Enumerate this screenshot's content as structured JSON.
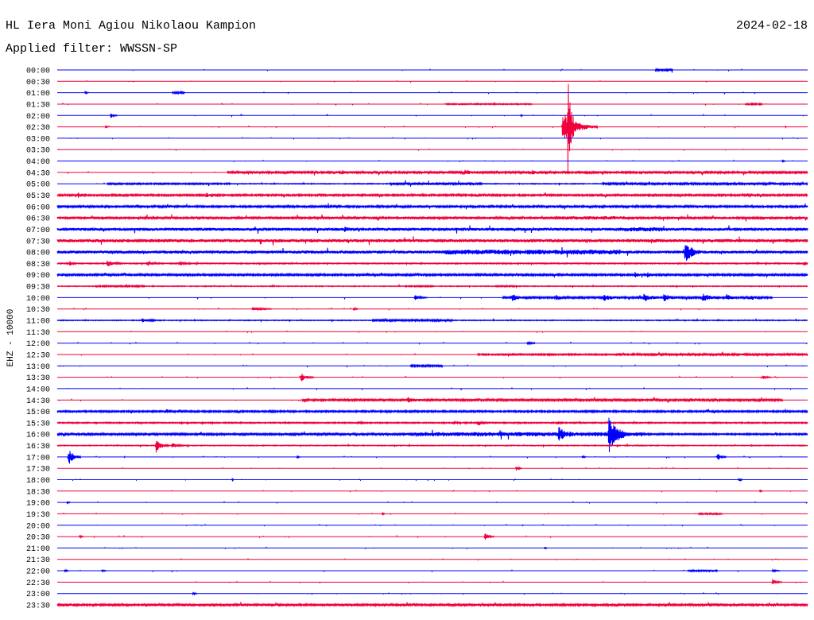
{
  "chart_data": {
    "type": "line",
    "title": "HL Iera Moni Agiou Nikolaou Kampion",
    "date": "2024-02-18",
    "subtitle": "Applied filter: WWSSN-SP",
    "ylabel": "EHZ - 10000",
    "xlim": [
      0,
      30
    ],
    "colors": [
      "#0000ff",
      "#f0003c"
    ],
    "rows": [
      {
        "label": "00:00",
        "noise": [
          {
            "from": 0,
            "to": 30,
            "amp": 250
          },
          {
            "from": 23.9,
            "to": 24.6,
            "amp": 900
          }
        ],
        "events": []
      },
      {
        "label": "00:30",
        "noise": [
          {
            "from": 0,
            "to": 30,
            "amp": 200
          }
        ],
        "events": []
      },
      {
        "label": "01:00",
        "noise": [
          {
            "from": 0,
            "to": 30,
            "amp": 250
          },
          {
            "from": 4.6,
            "to": 5.1,
            "amp": 800
          }
        ],
        "events": [
          {
            "t": 1.12,
            "dur": 0.15,
            "amp": 1100
          }
        ]
      },
      {
        "label": "01:30",
        "noise": [
          {
            "from": 0,
            "to": 30,
            "amp": 250
          },
          {
            "from": 15.5,
            "to": 19.0,
            "amp": 500
          },
          {
            "from": 27.5,
            "to": 28.2,
            "amp": 700
          }
        ],
        "events": []
      },
      {
        "label": "02:00",
        "noise": [
          {
            "from": 0,
            "to": 30,
            "amp": 250
          }
        ],
        "events": [
          {
            "t": 2.15,
            "dur": 0.25,
            "amp": 2600
          },
          {
            "t": 18.55,
            "dur": 0.12,
            "amp": 900
          }
        ]
      },
      {
        "label": "02:30",
        "noise": [
          {
            "from": 0,
            "to": 30,
            "amp": 250
          }
        ],
        "events": [
          {
            "t": 1.94,
            "dur": 0.1,
            "amp": 1200
          },
          {
            "t": 20.2,
            "dur": 1.4,
            "amp": 14000
          },
          {
            "t": 20.42,
            "dur": 0.25,
            "amp": 42000
          }
        ]
      },
      {
        "label": "03:00",
        "noise": [
          {
            "from": 0,
            "to": 30,
            "amp": 200
          }
        ],
        "events": []
      },
      {
        "label": "03:30",
        "noise": [
          {
            "from": 0,
            "to": 30,
            "amp": 200
          }
        ],
        "events": []
      },
      {
        "label": "04:00",
        "noise": [
          {
            "from": 0,
            "to": 30,
            "amp": 200
          }
        ],
        "events": [
          {
            "t": 29.0,
            "dur": 0.15,
            "amp": 1200
          }
        ]
      },
      {
        "label": "04:30",
        "noise": [
          {
            "from": 0,
            "to": 6.8,
            "amp": 250
          },
          {
            "from": 6.8,
            "to": 30,
            "amp": 850
          }
        ],
        "events": [
          {
            "t": 11.4,
            "dur": 0.5,
            "amp": 1300
          },
          {
            "t": 16.3,
            "dur": 0.6,
            "amp": 1800
          },
          {
            "t": 19.0,
            "dur": 0.5,
            "amp": 1500
          }
        ]
      },
      {
        "label": "05:00",
        "noise": [
          {
            "from": 0,
            "to": 2,
            "amp": 250
          },
          {
            "from": 2,
            "to": 6.9,
            "amp": 650
          },
          {
            "from": 6.9,
            "to": 13.3,
            "amp": 350
          },
          {
            "from": 13.3,
            "to": 17.0,
            "amp": 1000
          },
          {
            "from": 17.0,
            "to": 21.8,
            "amp": 350
          },
          {
            "from": 21.8,
            "to": 30,
            "amp": 850
          }
        ],
        "events": []
      },
      {
        "label": "05:30",
        "noise": [
          {
            "from": 0,
            "to": 30,
            "amp": 750
          }
        ],
        "events": [
          {
            "t": 0.83,
            "dur": 0.3,
            "amp": 2000
          },
          {
            "t": 5.97,
            "dur": 0.3,
            "amp": 1800
          }
        ]
      },
      {
        "label": "06:00",
        "noise": [
          {
            "from": 0,
            "to": 30,
            "amp": 950
          }
        ],
        "events": []
      },
      {
        "label": "06:30",
        "noise": [
          {
            "from": 0,
            "to": 30,
            "amp": 1000
          },
          {
            "from": 20.0,
            "to": 22.8,
            "amp": 1500
          }
        ],
        "events": []
      },
      {
        "label": "07:00",
        "noise": [
          {
            "from": 0,
            "to": 30,
            "amp": 1200
          },
          {
            "from": 22.5,
            "to": 24.2,
            "amp": 1800
          }
        ],
        "events": [
          {
            "t": 11.5,
            "dur": 0.3,
            "amp": 2000
          }
        ]
      },
      {
        "label": "07:30",
        "noise": [
          {
            "from": 0,
            "to": 30,
            "amp": 1400
          }
        ],
        "events": []
      },
      {
        "label": "08:00",
        "noise": [
          {
            "from": 0,
            "to": 15.5,
            "amp": 1300
          },
          {
            "from": 15.5,
            "to": 22.5,
            "amp": 2100
          },
          {
            "from": 22.5,
            "to": 30,
            "amp": 1200
          }
        ],
        "events": [
          {
            "t": 25.1,
            "dur": 0.6,
            "amp": 10500
          }
        ]
      },
      {
        "label": "08:30",
        "noise": [
          {
            "from": 0,
            "to": 30,
            "amp": 450
          }
        ],
        "events": [
          {
            "t": 0.5,
            "dur": 0.3,
            "amp": 2200
          },
          {
            "t": 2.0,
            "dur": 0.6,
            "amp": 2800
          },
          {
            "t": 3.6,
            "dur": 0.4,
            "amp": 2600
          },
          {
            "t": 4.9,
            "dur": 0.4,
            "amp": 1800
          },
          {
            "t": 29.85,
            "dur": 0.15,
            "amp": 1600
          }
        ]
      },
      {
        "label": "09:00",
        "noise": [
          {
            "from": 0,
            "to": 30,
            "amp": 800
          }
        ],
        "events": [
          {
            "t": 23.1,
            "dur": 0.4,
            "amp": 1800
          },
          {
            "t": 23.6,
            "dur": 0.3,
            "amp": 1600
          }
        ]
      },
      {
        "label": "09:30",
        "noise": [
          {
            "from": 0,
            "to": 30,
            "amp": 350
          },
          {
            "from": 1.5,
            "to": 3.5,
            "amp": 650
          },
          {
            "from": 13.9,
            "to": 15.0,
            "amp": 600
          },
          {
            "from": 17.5,
            "to": 18.3,
            "amp": 600
          }
        ],
        "events": []
      },
      {
        "label": "10:00",
        "noise": [
          {
            "from": 0,
            "to": 30,
            "amp": 300
          },
          {
            "from": 17.8,
            "to": 28.6,
            "amp": 800
          }
        ],
        "events": [
          {
            "t": 14.3,
            "dur": 0.5,
            "amp": 2100
          },
          {
            "t": 18.2,
            "dur": 0.5,
            "amp": 3000
          },
          {
            "t": 19.95,
            "dur": 0.5,
            "amp": 2000
          },
          {
            "t": 21.85,
            "dur": 0.7,
            "amp": 3000
          },
          {
            "t": 23.45,
            "dur": 0.6,
            "amp": 3200
          },
          {
            "t": 24.25,
            "dur": 0.6,
            "amp": 3000
          },
          {
            "t": 25.8,
            "dur": 0.7,
            "amp": 3200
          },
          {
            "t": 26.75,
            "dur": 0.5,
            "amp": 2500
          },
          {
            "t": 27.7,
            "dur": 0.5,
            "amp": 2200
          }
        ]
      },
      {
        "label": "10:30",
        "noise": [
          {
            "from": 0,
            "to": 30,
            "amp": 250
          }
        ],
        "events": [
          {
            "t": 7.8,
            "dur": 0.9,
            "amp": 1400
          },
          {
            "t": 11.85,
            "dur": 0.2,
            "amp": 1300
          }
        ]
      },
      {
        "label": "11:00",
        "noise": [
          {
            "from": 0,
            "to": 30,
            "amp": 350
          },
          {
            "from": 12.6,
            "to": 15.8,
            "amp": 850
          }
        ],
        "events": [
          {
            "t": 3.4,
            "dur": 0.8,
            "amp": 1500
          }
        ]
      },
      {
        "label": "11:30",
        "noise": [
          {
            "from": 0,
            "to": 30,
            "amp": 200
          }
        ],
        "events": []
      },
      {
        "label": "12:00",
        "noise": [
          {
            "from": 0,
            "to": 30,
            "amp": 250
          }
        ],
        "events": [
          {
            "t": 18.8,
            "dur": 0.4,
            "amp": 1000
          }
        ]
      },
      {
        "label": "12:30",
        "noise": [
          {
            "from": 0,
            "to": 16.8,
            "amp": 250
          },
          {
            "from": 16.8,
            "to": 23.0,
            "amp": 650
          },
          {
            "from": 23.0,
            "to": 30,
            "amp": 950
          }
        ],
        "events": []
      },
      {
        "label": "13:00",
        "noise": [
          {
            "from": 0,
            "to": 30,
            "amp": 250
          },
          {
            "from": 14.1,
            "to": 15.4,
            "amp": 800
          }
        ],
        "events": []
      },
      {
        "label": "13:30",
        "noise": [
          {
            "from": 0,
            "to": 30,
            "amp": 250
          }
        ],
        "events": [
          {
            "t": 9.75,
            "dur": 0.5,
            "amp": 3800
          },
          {
            "t": 28.2,
            "dur": 0.4,
            "amp": 1500
          }
        ]
      },
      {
        "label": "14:00",
        "noise": [
          {
            "from": 0,
            "to": 30,
            "amp": 250
          }
        ],
        "events": []
      },
      {
        "label": "14:30",
        "noise": [
          {
            "from": 0,
            "to": 9.8,
            "amp": 250
          },
          {
            "from": 9.8,
            "to": 29.0,
            "amp": 850
          }
        ],
        "events": [
          {
            "t": 14.0,
            "dur": 0.7,
            "amp": 2000
          }
        ]
      },
      {
        "label": "15:00",
        "noise": [
          {
            "from": 0,
            "to": 30,
            "amp": 700
          }
        ],
        "events": [
          {
            "t": 4.35,
            "dur": 0.4,
            "amp": 1500
          }
        ]
      },
      {
        "label": "15:30",
        "noise": [
          {
            "from": 0,
            "to": 30,
            "amp": 500
          }
        ],
        "events": [
          {
            "t": 12.0,
            "dur": 0.3,
            "amp": 1300
          },
          {
            "t": 15.8,
            "dur": 0.3,
            "amp": 1500
          },
          {
            "t": 16.8,
            "dur": 0.4,
            "amp": 1400
          },
          {
            "t": 20.0,
            "dur": 0.3,
            "amp": 1200
          }
        ]
      },
      {
        "label": "16:00",
        "noise": [
          {
            "from": 0,
            "to": 14.3,
            "amp": 850
          },
          {
            "from": 14.3,
            "to": 23.5,
            "amp": 1800
          },
          {
            "from": 23.5,
            "to": 30,
            "amp": 650
          }
        ],
        "events": [
          {
            "t": 20.05,
            "dur": 0.5,
            "amp": 5600
          },
          {
            "t": 22.05,
            "dur": 0.7,
            "amp": 16000
          }
        ]
      },
      {
        "label": "16:30",
        "noise": [
          {
            "from": 0,
            "to": 30,
            "amp": 350
          }
        ],
        "events": [
          {
            "t": 3.95,
            "dur": 0.5,
            "amp": 6300
          },
          {
            "t": 4.6,
            "dur": 0.5,
            "amp": 2600
          }
        ]
      },
      {
        "label": "17:00",
        "noise": [
          {
            "from": 0,
            "to": 30,
            "amp": 250
          }
        ],
        "events": [
          {
            "t": 0.45,
            "dur": 0.5,
            "amp": 7700
          },
          {
            "t": 9.6,
            "dur": 0.15,
            "amp": 900
          },
          {
            "t": 21.0,
            "dur": 0.2,
            "amp": 900
          },
          {
            "t": 26.4,
            "dur": 0.35,
            "amp": 3500
          }
        ]
      },
      {
        "label": "17:30",
        "noise": [
          {
            "from": 0,
            "to": 30,
            "amp": 200
          }
        ],
        "events": [
          {
            "t": 18.35,
            "dur": 0.25,
            "amp": 2000
          }
        ]
      },
      {
        "label": "18:00",
        "noise": [
          {
            "from": 0,
            "to": 30,
            "amp": 200
          }
        ],
        "events": [
          {
            "t": 7.0,
            "dur": 0.1,
            "amp": 900
          },
          {
            "t": 27.25,
            "dur": 0.2,
            "amp": 1500
          }
        ]
      },
      {
        "label": "18:30",
        "noise": [
          {
            "from": 0,
            "to": 30,
            "amp": 200
          }
        ],
        "events": [
          {
            "t": 28.1,
            "dur": 0.15,
            "amp": 900
          }
        ]
      },
      {
        "label": "19:00",
        "noise": [
          {
            "from": 0,
            "to": 30,
            "amp": 200
          }
        ],
        "events": [
          {
            "t": 0.4,
            "dur": 0.2,
            "amp": 900
          }
        ]
      },
      {
        "label": "19:30",
        "noise": [
          {
            "from": 0,
            "to": 30,
            "amp": 200
          },
          {
            "from": 25.6,
            "to": 26.6,
            "amp": 600
          }
        ],
        "events": [
          {
            "t": 13.0,
            "dur": 0.2,
            "amp": 700
          }
        ]
      },
      {
        "label": "20:00",
        "noise": [
          {
            "from": 0,
            "to": 30,
            "amp": 200
          }
        ],
        "events": []
      },
      {
        "label": "20:30",
        "noise": [
          {
            "from": 0,
            "to": 30,
            "amp": 250
          }
        ],
        "events": [
          {
            "t": 0.9,
            "dur": 0.2,
            "amp": 900
          },
          {
            "t": 17.1,
            "dur": 0.35,
            "amp": 3500
          }
        ]
      },
      {
        "label": "21:00",
        "noise": [
          {
            "from": 0,
            "to": 30,
            "amp": 200
          }
        ],
        "events": [
          {
            "t": 19.5,
            "dur": 0.1,
            "amp": 1200
          }
        ]
      },
      {
        "label": "21:30",
        "noise": [
          {
            "from": 0,
            "to": 30,
            "amp": 200
          }
        ],
        "events": []
      },
      {
        "label": "22:00",
        "noise": [
          {
            "from": 0,
            "to": 30,
            "amp": 250
          },
          {
            "from": 25.2,
            "to": 26.4,
            "amp": 600
          }
        ],
        "events": [
          {
            "t": 0.3,
            "dur": 0.2,
            "amp": 900
          },
          {
            "t": 1.8,
            "dur": 0.2,
            "amp": 800
          },
          {
            "t": 28.6,
            "dur": 0.4,
            "amp": 900
          }
        ]
      },
      {
        "label": "22:30",
        "noise": [
          {
            "from": 0,
            "to": 30,
            "amp": 200
          }
        ],
        "events": [
          {
            "t": 28.6,
            "dur": 0.4,
            "amp": 2600
          }
        ]
      },
      {
        "label": "23:00",
        "noise": [
          {
            "from": 0,
            "to": 30,
            "amp": 200
          }
        ],
        "events": [
          {
            "t": 5.43,
            "dur": 0.2,
            "amp": 1500
          }
        ]
      },
      {
        "label": "23:30",
        "noise": [
          {
            "from": 0,
            "to": 30,
            "amp": 850
          }
        ],
        "events": []
      }
    ]
  }
}
